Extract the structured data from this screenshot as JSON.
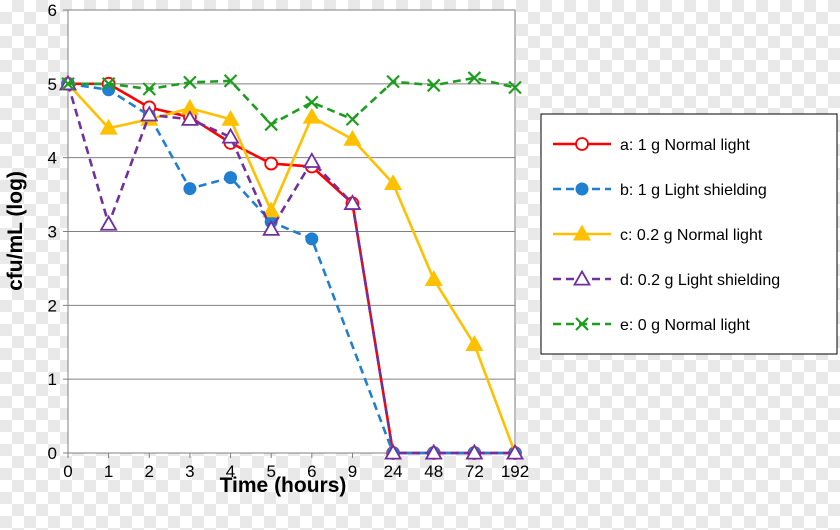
{
  "chart_data": {
    "type": "line",
    "title": "",
    "xlabel": "Time (hours)",
    "ylabel": "cfu/mL (log)",
    "x": [
      "0",
      "1",
      "2",
      "3",
      "4",
      "5",
      "6",
      "9",
      "24",
      "48",
      "72",
      "192"
    ],
    "ylim": [
      0,
      6
    ],
    "yticks": [
      0,
      1,
      2,
      3,
      4,
      5,
      6
    ],
    "grid": "horizontal",
    "legend_position": "right",
    "series": [
      {
        "name": "a: 1 g Normal light",
        "color": "#ff0000",
        "marker": "circle-open",
        "line": "solid",
        "values": [
          5.0,
          5.0,
          4.68,
          4.55,
          4.2,
          3.92,
          3.88,
          3.38,
          0,
          0,
          0,
          0
        ]
      },
      {
        "name": "b: 1 g Light shielding",
        "color": "#1f7fd1",
        "marker": "circle-filled",
        "line": "dashed",
        "values": [
          5.0,
          4.92,
          4.57,
          3.58,
          3.73,
          3.13,
          2.9,
          null,
          0,
          0,
          0,
          0
        ]
      },
      {
        "name": "c: 0.2 g Normal light",
        "color": "#ffc000",
        "marker": "triangle-filled",
        "line": "solid",
        "values": [
          5.0,
          4.4,
          4.52,
          4.67,
          4.52,
          3.28,
          4.55,
          4.25,
          3.65,
          2.35,
          1.47,
          0
        ]
      },
      {
        "name": "d: 0.2 g Light shielding",
        "color": "#7030a0",
        "marker": "triangle-open",
        "line": "dashed",
        "values": [
          5.0,
          3.1,
          4.58,
          4.52,
          4.28,
          3.03,
          3.95,
          3.38,
          0,
          0,
          0,
          0
        ]
      },
      {
        "name": "e: 0 g Normal light",
        "color": "#1e9e1e",
        "marker": "x",
        "line": "dashed",
        "values": [
          5.0,
          5.0,
          4.93,
          5.02,
          5.04,
          4.45,
          4.75,
          4.52,
          5.03,
          4.98,
          5.08,
          4.95
        ]
      }
    ]
  }
}
